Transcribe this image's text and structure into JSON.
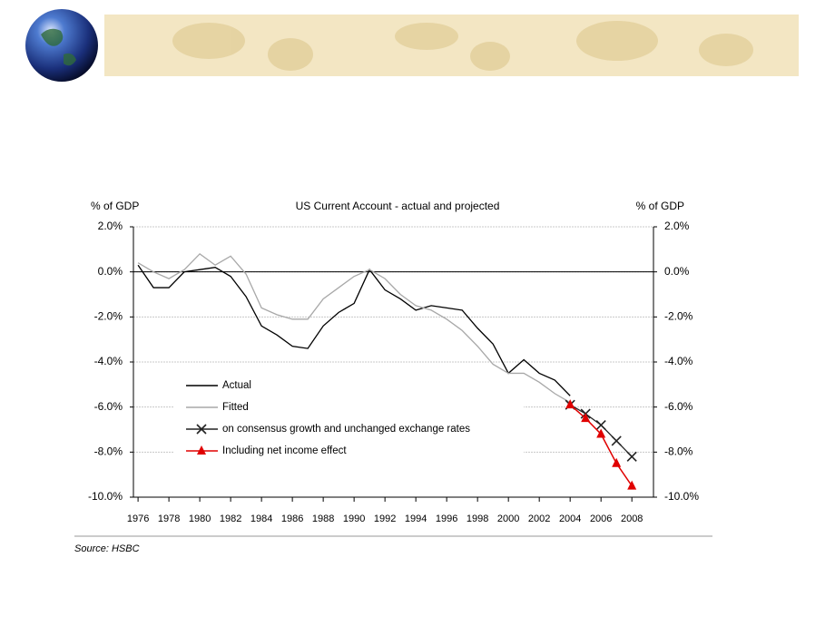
{
  "chart_data": {
    "type": "line",
    "title": "US Current Account - actual and projected",
    "ylabel": "% of GDP",
    "y2label": "% of GDP",
    "source": "Source: HSBC",
    "x": [
      1976,
      1977,
      1978,
      1979,
      1980,
      1981,
      1982,
      1983,
      1984,
      1985,
      1986,
      1987,
      1988,
      1989,
      1990,
      1991,
      1992,
      1993,
      1994,
      1995,
      1996,
      1997,
      1998,
      1999,
      2000,
      2001,
      2002,
      2003,
      2004,
      2005,
      2006,
      2007,
      2008
    ],
    "xlim": [
      1975.7,
      2009.4
    ],
    "xticks": [
      1976,
      1978,
      1980,
      1982,
      1984,
      1986,
      1988,
      1990,
      1992,
      1994,
      1996,
      1998,
      2000,
      2002,
      2004,
      2006,
      2008
    ],
    "ylim": [
      -10,
      2
    ],
    "yticks": [
      {
        "value": 2,
        "label": "2.0%"
      },
      {
        "value": 0,
        "label": "0.0%"
      },
      {
        "value": -2,
        "label": "-2.0%"
      },
      {
        "value": -4,
        "label": "-4.0%"
      },
      {
        "value": -6,
        "label": "-6.0%"
      },
      {
        "value": -8,
        "label": "-8.0%"
      },
      {
        "value": -10,
        "label": "-10.0%"
      }
    ],
    "y2lim": [
      -10,
      2
    ],
    "y2ticks": [
      {
        "value": 2,
        "label": "2.0%"
      },
      {
        "value": 0,
        "label": "0.0%"
      },
      {
        "value": -2,
        "label": "-2.0%"
      },
      {
        "value": -4,
        "label": "-4.0%"
      },
      {
        "value": -6,
        "label": "-6.0%"
      },
      {
        "value": -8,
        "label": "-8.0%"
      },
      {
        "value": -10,
        "label": "-10.0%"
      }
    ],
    "grid": true,
    "series": [
      {
        "name": "Actual",
        "color": "#000000",
        "marker": "none",
        "values": [
          0.3,
          -0.7,
          -0.7,
          0.0,
          0.1,
          0.2,
          -0.2,
          -1.1,
          -2.4,
          -2.8,
          -3.3,
          -3.4,
          -2.4,
          -1.8,
          -1.4,
          0.1,
          -0.8,
          -1.2,
          -1.7,
          -1.5,
          -1.6,
          -1.7,
          -2.5,
          -3.2,
          -4.5,
          -3.9,
          -4.5,
          -4.8,
          -5.5,
          null,
          null,
          null,
          null
        ]
      },
      {
        "name": "Fitted",
        "color": "#a8a8a8",
        "marker": "none",
        "values": [
          0.4,
          0.0,
          -0.3,
          0.1,
          0.8,
          0.3,
          0.7,
          -0.1,
          -1.6,
          -1.9,
          -2.1,
          -2.1,
          -1.2,
          -0.7,
          -0.2,
          0.1,
          -0.3,
          -1.0,
          -1.5,
          -1.7,
          -2.1,
          -2.6,
          -3.3,
          -4.1,
          -4.5,
          -4.5,
          -4.9,
          -5.4,
          -5.8,
          null,
          null,
          null,
          null
        ]
      },
      {
        "name": "on consensus growth and unchanged exchange rates",
        "color": "#222222",
        "marker": "x",
        "values": [
          null,
          null,
          null,
          null,
          null,
          null,
          null,
          null,
          null,
          null,
          null,
          null,
          null,
          null,
          null,
          null,
          null,
          null,
          null,
          null,
          null,
          null,
          null,
          null,
          null,
          null,
          null,
          null,
          -5.9,
          -6.3,
          -6.8,
          -7.5,
          -8.2
        ]
      },
      {
        "name": "Including net income effect",
        "color": "#e00000",
        "marker": "triangle",
        "values": [
          null,
          null,
          null,
          null,
          null,
          null,
          null,
          null,
          null,
          null,
          null,
          null,
          null,
          null,
          null,
          null,
          null,
          null,
          null,
          null,
          null,
          null,
          null,
          null,
          null,
          null,
          null,
          null,
          -5.9,
          -6.5,
          -7.2,
          -8.5,
          -9.5
        ]
      }
    ]
  }
}
